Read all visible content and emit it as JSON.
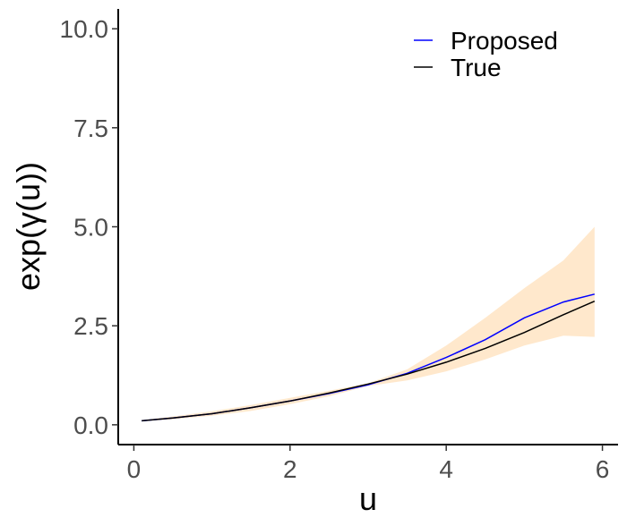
{
  "chart_data": {
    "type": "line",
    "xlabel": "u",
    "ylabel": "exp(γ(u))",
    "xlim": [
      -0.2,
      6.2
    ],
    "ylim": [
      -0.5,
      10.5
    ],
    "xticks": [
      0,
      2,
      4,
      6
    ],
    "xtick_labels": [
      "0",
      "2",
      "4",
      "6"
    ],
    "yticks": [
      0,
      2.5,
      5,
      7.5,
      10
    ],
    "ytick_labels": [
      "0.0",
      "2.5",
      "5.0",
      "7.5",
      "10.0"
    ],
    "grid": false,
    "legend_position": "top-right",
    "legend": [
      {
        "label": "Proposed",
        "color": "#0000ff"
      },
      {
        "label": "True",
        "color": "#000000"
      }
    ],
    "band": {
      "color": "#ffe8cc",
      "x": [
        0.1,
        0.5,
        1.0,
        1.5,
        2.0,
        2.5,
        3.0,
        3.5,
        4.0,
        4.5,
        5.0,
        5.5,
        5.9
      ],
      "lower": [
        0.09,
        0.14,
        0.23,
        0.35,
        0.52,
        0.72,
        0.98,
        1.12,
        1.35,
        1.65,
        2.0,
        2.25,
        2.22
      ],
      "upper": [
        0.12,
        0.21,
        0.34,
        0.5,
        0.68,
        0.86,
        1.05,
        1.4,
        2.0,
        2.7,
        3.45,
        4.15,
        5.0
      ]
    },
    "series": [
      {
        "name": "Proposed",
        "color": "#0000ff",
        "x": [
          0.1,
          0.5,
          1.0,
          1.5,
          2.0,
          2.5,
          3.0,
          3.5,
          4.0,
          4.5,
          5.0,
          5.5,
          5.9
        ],
        "y": [
          0.1,
          0.17,
          0.28,
          0.43,
          0.6,
          0.79,
          1.01,
          1.3,
          1.7,
          2.15,
          2.7,
          3.1,
          3.3
        ]
      },
      {
        "name": "True",
        "color": "#000000",
        "x": [
          0.1,
          0.5,
          1.0,
          1.5,
          2.0,
          2.5,
          3.0,
          3.5,
          4.0,
          4.5,
          5.0,
          5.5,
          5.9
        ],
        "y": [
          0.1,
          0.17,
          0.28,
          0.43,
          0.6,
          0.8,
          1.03,
          1.28,
          1.58,
          1.93,
          2.33,
          2.78,
          3.12
        ]
      }
    ]
  }
}
